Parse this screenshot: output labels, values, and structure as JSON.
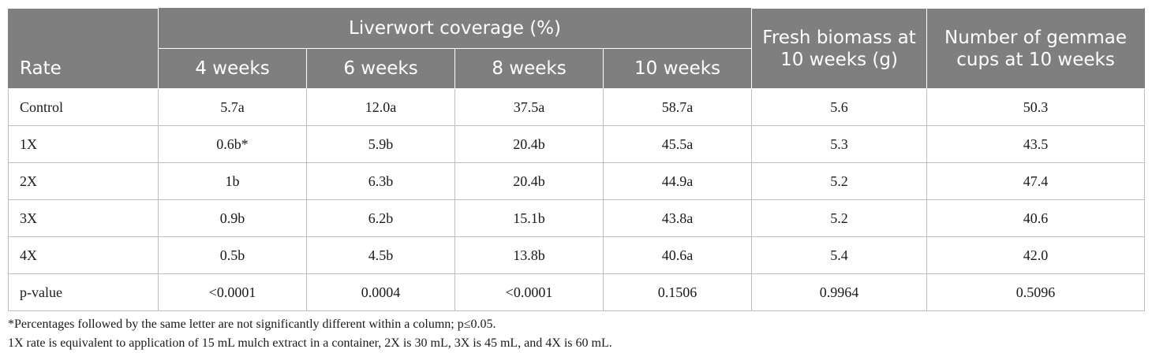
{
  "table": {
    "group_header": "Liverwort coverage (%)",
    "columns": {
      "rate": "Rate",
      "w4": "4 weeks",
      "w6": "6 weeks",
      "w8": "8 weeks",
      "w10": "10 weeks",
      "biomass": "Fresh biomass at 10 weeks (g)",
      "gemmae": "Number of gemmae cups at 10 weeks"
    },
    "rows": [
      {
        "rate": "Control",
        "w4": "5.7a",
        "w6": "12.0a",
        "w8": "37.5a",
        "w10": "58.7a",
        "biomass": "5.6",
        "gemmae": "50.3"
      },
      {
        "rate": "1X",
        "w4": "0.6b*",
        "w6": "5.9b",
        "w8": "20.4b",
        "w10": "45.5a",
        "biomass": "5.3",
        "gemmae": "43.5"
      },
      {
        "rate": "2X",
        "w4": "1b",
        "w6": "6.3b",
        "w8": "20.4b",
        "w10": "44.9a",
        "biomass": "5.2",
        "gemmae": "47.4"
      },
      {
        "rate": "3X",
        "w4": "0.9b",
        "w6": "6.2b",
        "w8": "15.1b",
        "w10": "43.8a",
        "biomass": "5.2",
        "gemmae": "40.6"
      },
      {
        "rate": "4X",
        "w4": "0.5b",
        "w6": "4.5b",
        "w8": "13.8b",
        "w10": "40.6a",
        "biomass": "5.4",
        "gemmae": "42.0"
      },
      {
        "rate": "p-value",
        "w4": "<0.0001",
        "w6": "0.0004",
        "w8": "<0.0001",
        "w10": "0.1506",
        "biomass": "0.9964",
        "gemmae": "0.5096"
      }
    ]
  },
  "footnotes": [
    "*Percentages followed by the same letter are not significantly different within a column; p≤0.05.",
    "1X rate is equivalent to application of 15 mL mulch extract in a container, 2X is 30 mL, 3X is 45 mL, and 4X is 60 mL."
  ],
  "colors": {
    "header_bg": "#7f7f7f",
    "header_text": "#ffffff",
    "grid": "#bdbdbd"
  }
}
